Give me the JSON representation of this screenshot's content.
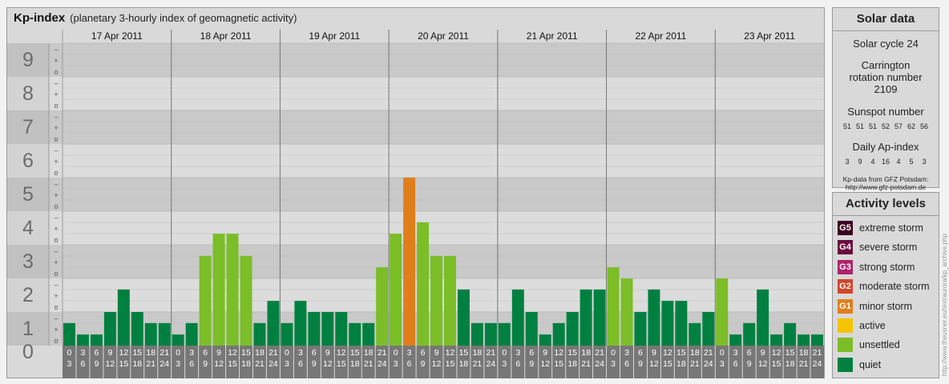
{
  "header": {
    "title": "Kp-index",
    "subtitle": "(planetary 3-hourly index of geomagnetic activity)"
  },
  "chart_data": {
    "type": "bar",
    "title": "Kp-index",
    "subtitle": "(planetary 3-hourly index of geomagnetic activity)",
    "ylim": [
      0,
      9
    ],
    "y_ticks": [
      "0",
      "1",
      "2",
      "3",
      "4",
      "5",
      "6",
      "7",
      "8",
      "9"
    ],
    "minor_marks": [
      "o",
      "+",
      "–"
    ],
    "days": [
      "17 Apr 2011",
      "18 Apr 2011",
      "19 Apr 2011",
      "20 Apr 2011",
      "21 Apr 2011",
      "22 Apr 2011",
      "23 Apr 2011"
    ],
    "interval_start": [
      "0",
      "3",
      "6",
      "9",
      "12",
      "15",
      "18",
      "21"
    ],
    "interval_end": [
      "3",
      "6",
      "9",
      "12",
      "15",
      "18",
      "21",
      "24"
    ],
    "values": [
      [
        0.67,
        0.33,
        0.33,
        1.0,
        1.67,
        1.0,
        0.67,
        0.67
      ],
      [
        0.33,
        0.67,
        2.67,
        3.33,
        3.33,
        2.67,
        0.67,
        1.33
      ],
      [
        0.67,
        1.33,
        1.0,
        1.0,
        1.0,
        0.67,
        0.67,
        2.33
      ],
      [
        3.33,
        5.0,
        3.67,
        2.67,
        2.67,
        1.67,
        0.67,
        0.67
      ],
      [
        0.67,
        1.67,
        1.0,
        0.33,
        0.67,
        1.0,
        1.67,
        1.67
      ],
      [
        2.33,
        2.0,
        1.0,
        1.67,
        1.33,
        1.33,
        0.67,
        1.0
      ],
      [
        2.0,
        0.33,
        0.67,
        1.67,
        0.33,
        0.67,
        0.33,
        0.33
      ]
    ],
    "grid": true
  },
  "colors": {
    "quiet": "#008040",
    "unsettled": "#7bbe28",
    "active": "#f5c400",
    "minor_storm": "#e07e1c",
    "moderate_storm": "#d2452a",
    "strong_storm": "#b0226a",
    "severe_storm": "#6b0a3e",
    "extreme_storm": "#3d0020"
  },
  "solar": {
    "heading": "Solar data",
    "cycle": "Solar cycle 24",
    "carrington": "Carrington rotation number 2109",
    "sunspot_label": "Sunspot number",
    "sunspot": [
      "51",
      "51",
      "51",
      "52",
      "57",
      "62",
      "56"
    ],
    "ap_label": "Daily Ap-index",
    "ap": [
      "3",
      "9",
      "4",
      "16",
      "4",
      "5",
      "3"
    ],
    "source_line1": "Kp-data from GFZ Potsdam:",
    "source_line2": "http://www.gfz-potsdam.de"
  },
  "activity": {
    "heading": "Activity levels",
    "levels": [
      {
        "code": "G5",
        "label": "extreme storm",
        "color": "#3d0020"
      },
      {
        "code": "G4",
        "label": "severe storm",
        "color": "#6b0a3e"
      },
      {
        "code": "G3",
        "label": "strong storm",
        "color": "#b0226a"
      },
      {
        "code": "G2",
        "label": "moderate storm",
        "color": "#d2452a"
      },
      {
        "code": "G1",
        "label": "minor storm",
        "color": "#e07e1c"
      },
      {
        "code": "",
        "label": "active",
        "color": "#f5c400"
      },
      {
        "code": "",
        "label": "unsettled",
        "color": "#7bbe28"
      },
      {
        "code": "",
        "label": "quiet",
        "color": "#008040"
      }
    ]
  },
  "credit": "http://www.theusner.eu/text/aurora/kp_archive.php"
}
